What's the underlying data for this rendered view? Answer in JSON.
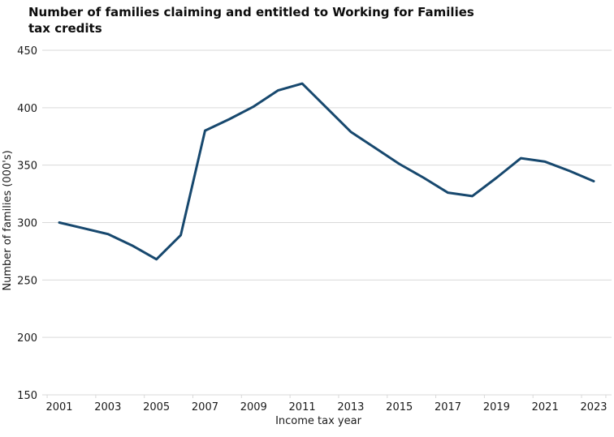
{
  "chart_data": {
    "type": "line",
    "title": "Number of families claiming and entitled to Working for Families tax credits",
    "title_lines": [
      "Number of families claiming and entitled to Working for Families",
      "tax credits"
    ],
    "xlabel": "Income tax year",
    "ylabel": "Number of families (000's)",
    "x": [
      2001,
      2002,
      2003,
      2004,
      2005,
      2006,
      2007,
      2008,
      2009,
      2010,
      2011,
      2012,
      2013,
      2014,
      2015,
      2016,
      2017,
      2018,
      2019,
      2020,
      2021,
      2022,
      2023
    ],
    "series": [
      {
        "name": "Number of families (000's)",
        "values": [
          300,
          295,
          290,
          280,
          268,
          289,
          380,
          390,
          401,
          415,
          421,
          400,
          379,
          365,
          351,
          339,
          326,
          323,
          339,
          356,
          353,
          345,
          336
        ]
      }
    ],
    "ylim": [
      150,
      450
    ],
    "yticks": [
      450,
      400,
      350,
      300,
      250,
      200,
      150
    ],
    "xticks": [
      2001,
      2003,
      2005,
      2007,
      2009,
      2011,
      2013,
      2015,
      2017,
      2019,
      2021,
      2023
    ],
    "grid": "horizontal",
    "legend": "none",
    "line_color": "#17486E",
    "grid_color": "#D9D9D9",
    "text_color": "#1a1a1a"
  }
}
